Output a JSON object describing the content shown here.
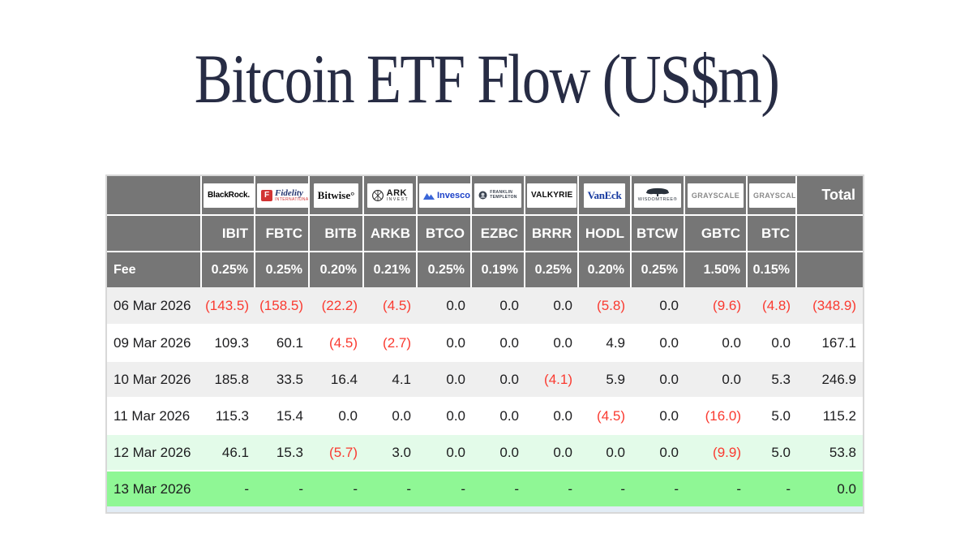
{
  "page": {
    "title": "Bitcoin ETF Flow (US$m)"
  },
  "colors": {
    "title": "#272c44",
    "header_bg": "#767676",
    "stripe_bg": "#efefef",
    "mint_bg": "#e3fbe9",
    "green_bg": "#8ff795",
    "negative": "#fa3a30",
    "partial_row_bg": "#e2ecf5",
    "fidelity_red": "#d23434",
    "fidelity_navy": "#263771",
    "invesco_blue": "#1c41c8",
    "vaneck_blue": "#16399f",
    "franklin_slate": "#39414e",
    "wisdomtree_dark": "#2a323c",
    "grayscale_gray": "#8a8a8a"
  },
  "table": {
    "fee_label": "Fee",
    "total_label": "Total",
    "providers": [
      {
        "id": "blackrock",
        "name": "BlackRock",
        "ticker": "IBIT",
        "fee": "0.25%",
        "logo_text": [
          "BlackRock."
        ]
      },
      {
        "id": "fidelity",
        "name": "Fidelity",
        "ticker": "FBTC",
        "fee": "0.25%",
        "logo_text": [
          "F",
          "Fidelity",
          "INTERNATIONAL"
        ]
      },
      {
        "id": "bitwise",
        "name": "Bitwise",
        "ticker": "BITB",
        "fee": "0.20%",
        "logo_text": [
          "Bitwise°"
        ]
      },
      {
        "id": "ark",
        "name": "ARK Invest",
        "ticker": "ARKB",
        "fee": "0.21%",
        "logo_text": [
          "ARK",
          "INVEST"
        ]
      },
      {
        "id": "invesco",
        "name": "Invesco",
        "ticker": "BTCO",
        "fee": "0.25%",
        "logo_text": [
          "Invesco"
        ]
      },
      {
        "id": "franklin",
        "name": "Franklin Templeton",
        "ticker": "EZBC",
        "fee": "0.19%",
        "logo_text": [
          "FRANKLIN",
          "TEMPLETON"
        ]
      },
      {
        "id": "valkyrie",
        "name": "Valkyrie",
        "ticker": "BRRR",
        "fee": "0.25%",
        "logo_text": [
          "VALKYRIE"
        ]
      },
      {
        "id": "vaneck",
        "name": "VanEck",
        "ticker": "HODL",
        "fee": "0.20%",
        "logo_text": [
          "VanEck"
        ]
      },
      {
        "id": "wisdomtree",
        "name": "WisdomTree",
        "ticker": "BTCW",
        "fee": "0.25%",
        "logo_text": [
          "WISDOMTREE®"
        ]
      },
      {
        "id": "grayscale",
        "name": "Grayscale",
        "ticker": "GBTC",
        "fee": "1.50%",
        "logo_text": [
          "GRAYSCALE"
        ]
      },
      {
        "id": "grayscale",
        "name": "Grayscale",
        "ticker": "BTC",
        "fee": "0.15%",
        "logo_text": [
          "GRAYSCALE"
        ]
      }
    ],
    "rows": [
      {
        "date": "06 Mar 2026",
        "bg": "stripe",
        "values": [
          "(143.5)",
          "(158.5)",
          "(22.2)",
          "(4.5)",
          "0.0",
          "0.0",
          "0.0",
          "(5.8)",
          "0.0",
          "(9.6)",
          "(4.8)"
        ],
        "total": "(348.9)"
      },
      {
        "date": "09 Mar 2026",
        "bg": "white",
        "values": [
          "109.3",
          "60.1",
          "(4.5)",
          "(2.7)",
          "0.0",
          "0.0",
          "0.0",
          "4.9",
          "0.0",
          "0.0",
          "0.0"
        ],
        "total": "167.1"
      },
      {
        "date": "10 Mar 2026",
        "bg": "stripe",
        "values": [
          "185.8",
          "33.5",
          "16.4",
          "4.1",
          "0.0",
          "0.0",
          "(4.1)",
          "5.9",
          "0.0",
          "0.0",
          "5.3"
        ],
        "total": "246.9"
      },
      {
        "date": "11 Mar 2026",
        "bg": "white",
        "values": [
          "115.3",
          "15.4",
          "0.0",
          "0.0",
          "0.0",
          "0.0",
          "0.0",
          "(4.5)",
          "0.0",
          "(16.0)",
          "5.0"
        ],
        "total": "115.2"
      },
      {
        "date": "12 Mar 2026",
        "bg": "mint",
        "values": [
          "46.1",
          "15.3",
          "(5.7)",
          "3.0",
          "0.0",
          "0.0",
          "0.0",
          "0.0",
          "0.0",
          "(9.9)",
          "5.0"
        ],
        "total": "53.8"
      },
      {
        "date": "13 Mar 2026",
        "bg": "green",
        "values": [
          "-",
          "-",
          "-",
          "-",
          "-",
          "-",
          "-",
          "-",
          "-",
          "-",
          "-"
        ],
        "total": "0.0"
      }
    ],
    "chart_data": {
      "type": "table",
      "title": "Bitcoin ETF Flow (US$m)",
      "categories": [
        "IBIT",
        "FBTC",
        "BITB",
        "ARKB",
        "BTCO",
        "EZBC",
        "BRRR",
        "HODL",
        "BTCW",
        "GBTC",
        "BTC",
        "Total"
      ],
      "series": [
        {
          "name": "06 Mar 2026",
          "values": [
            -143.5,
            -158.5,
            -22.2,
            -4.5,
            0.0,
            0.0,
            0.0,
            -5.8,
            0.0,
            -9.6,
            -4.8,
            -348.9
          ]
        },
        {
          "name": "09 Mar 2026",
          "values": [
            109.3,
            60.1,
            -4.5,
            -2.7,
            0.0,
            0.0,
            0.0,
            4.9,
            0.0,
            0.0,
            0.0,
            167.1
          ]
        },
        {
          "name": "10 Mar 2026",
          "values": [
            185.8,
            33.5,
            16.4,
            4.1,
            0.0,
            0.0,
            -4.1,
            5.9,
            0.0,
            0.0,
            5.3,
            246.9
          ]
        },
        {
          "name": "11 Mar 2026",
          "values": [
            115.3,
            15.4,
            0.0,
            0.0,
            0.0,
            0.0,
            0.0,
            -4.5,
            0.0,
            -16.0,
            5.0,
            115.2
          ]
        },
        {
          "name": "12 Mar 2026",
          "values": [
            46.1,
            15.3,
            -5.7,
            3.0,
            0.0,
            0.0,
            0.0,
            0.0,
            0.0,
            -9.9,
            5.0,
            53.8
          ]
        },
        {
          "name": "13 Mar 2026",
          "values": [
            null,
            null,
            null,
            null,
            null,
            null,
            null,
            null,
            null,
            null,
            null,
            0.0
          ]
        }
      ]
    }
  }
}
